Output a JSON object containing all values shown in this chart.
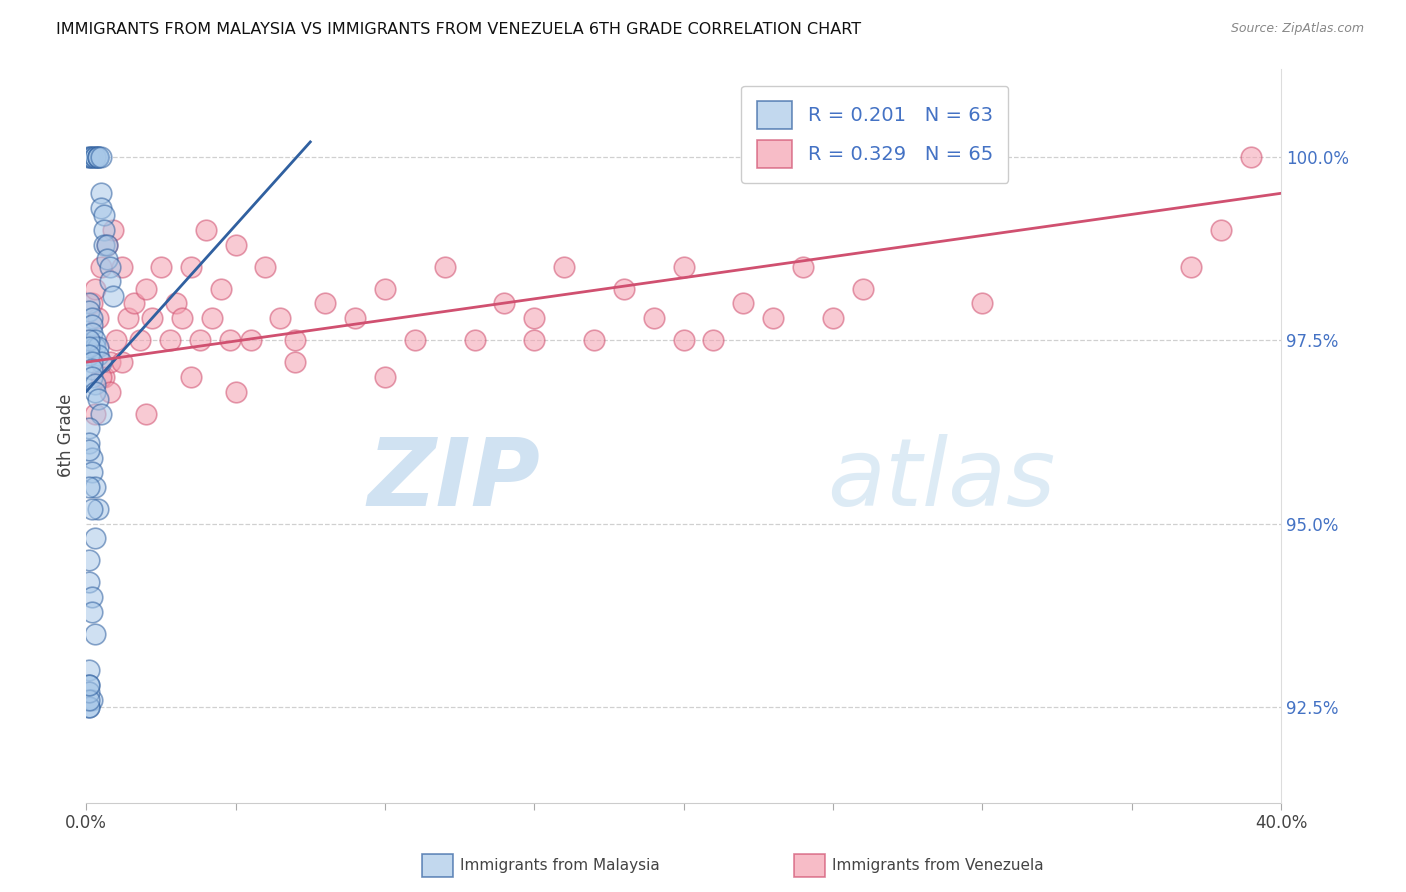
{
  "title": "IMMIGRANTS FROM MALAYSIA VS IMMIGRANTS FROM VENEZUELA 6TH GRADE CORRELATION CHART",
  "source": "Source: ZipAtlas.com",
  "ylabel": "6th Grade",
  "color_malaysia": "#a8c8e8",
  "color_venezuela": "#f4a0b0",
  "trend_color_malaysia": "#3060a0",
  "trend_color_venezuela": "#d05070",
  "ytick_vals": [
    92.5,
    95.0,
    97.5,
    100.0
  ],
  "xlim": [
    0.0,
    0.4
  ],
  "ylim": [
    91.2,
    101.2
  ],
  "malaysia_x": [
    0.001,
    0.001,
    0.002,
    0.002,
    0.003,
    0.003,
    0.004,
    0.004,
    0.004,
    0.005,
    0.005,
    0.005,
    0.006,
    0.006,
    0.006,
    0.007,
    0.007,
    0.008,
    0.008,
    0.009,
    0.001,
    0.001,
    0.002,
    0.002,
    0.002,
    0.003,
    0.003,
    0.004,
    0.004,
    0.005,
    0.001,
    0.001,
    0.001,
    0.002,
    0.002,
    0.002,
    0.003,
    0.003,
    0.004,
    0.005,
    0.001,
    0.001,
    0.002,
    0.002,
    0.003,
    0.004,
    0.001,
    0.001,
    0.002,
    0.003,
    0.001,
    0.001,
    0.002,
    0.002,
    0.003,
    0.001,
    0.001,
    0.002,
    0.001,
    0.001,
    0.001,
    0.001,
    0.001
  ],
  "malaysia_y": [
    100.0,
    100.0,
    100.0,
    100.0,
    100.0,
    100.0,
    100.0,
    100.0,
    100.0,
    100.0,
    99.5,
    99.3,
    99.2,
    99.0,
    98.8,
    98.8,
    98.6,
    98.5,
    98.3,
    98.1,
    98.0,
    97.9,
    97.8,
    97.7,
    97.6,
    97.5,
    97.4,
    97.4,
    97.3,
    97.2,
    97.5,
    97.4,
    97.3,
    97.2,
    97.1,
    97.0,
    96.9,
    96.8,
    96.7,
    96.5,
    96.3,
    96.1,
    95.9,
    95.7,
    95.5,
    95.2,
    96.0,
    95.5,
    95.2,
    94.8,
    94.5,
    94.2,
    94.0,
    93.8,
    93.5,
    93.0,
    92.8,
    92.6,
    92.5,
    92.5,
    92.7,
    92.6,
    92.8
  ],
  "venezuela_x": [
    0.001,
    0.002,
    0.003,
    0.004,
    0.005,
    0.006,
    0.007,
    0.008,
    0.009,
    0.01,
    0.012,
    0.014,
    0.016,
    0.018,
    0.02,
    0.022,
    0.025,
    0.028,
    0.03,
    0.032,
    0.035,
    0.038,
    0.04,
    0.042,
    0.045,
    0.048,
    0.05,
    0.055,
    0.06,
    0.065,
    0.07,
    0.08,
    0.09,
    0.1,
    0.11,
    0.12,
    0.13,
    0.14,
    0.15,
    0.16,
    0.17,
    0.18,
    0.19,
    0.2,
    0.21,
    0.22,
    0.23,
    0.24,
    0.25,
    0.26,
    0.003,
    0.005,
    0.008,
    0.012,
    0.02,
    0.035,
    0.05,
    0.07,
    0.1,
    0.15,
    0.2,
    0.3,
    0.37,
    0.38,
    0.39
  ],
  "venezuela_y": [
    97.5,
    98.0,
    98.2,
    97.8,
    98.5,
    97.0,
    98.8,
    97.2,
    99.0,
    97.5,
    98.5,
    97.8,
    98.0,
    97.5,
    98.2,
    97.8,
    98.5,
    97.5,
    98.0,
    97.8,
    98.5,
    97.5,
    99.0,
    97.8,
    98.2,
    97.5,
    98.8,
    97.5,
    98.5,
    97.8,
    97.5,
    98.0,
    97.8,
    98.2,
    97.5,
    98.5,
    97.5,
    98.0,
    97.8,
    98.5,
    97.5,
    98.2,
    97.8,
    98.5,
    97.5,
    98.0,
    97.8,
    98.5,
    97.8,
    98.2,
    96.5,
    97.0,
    96.8,
    97.2,
    96.5,
    97.0,
    96.8,
    97.2,
    97.0,
    97.5,
    97.5,
    98.0,
    98.5,
    99.0,
    100.0
  ],
  "trend_mal_x0": 0.0,
  "trend_mal_x1": 0.075,
  "trend_mal_y0": 96.8,
  "trend_mal_y1": 100.2,
  "trend_ven_x0": 0.0,
  "trend_ven_x1": 0.4,
  "trend_ven_y0": 97.2,
  "trend_ven_y1": 99.5
}
